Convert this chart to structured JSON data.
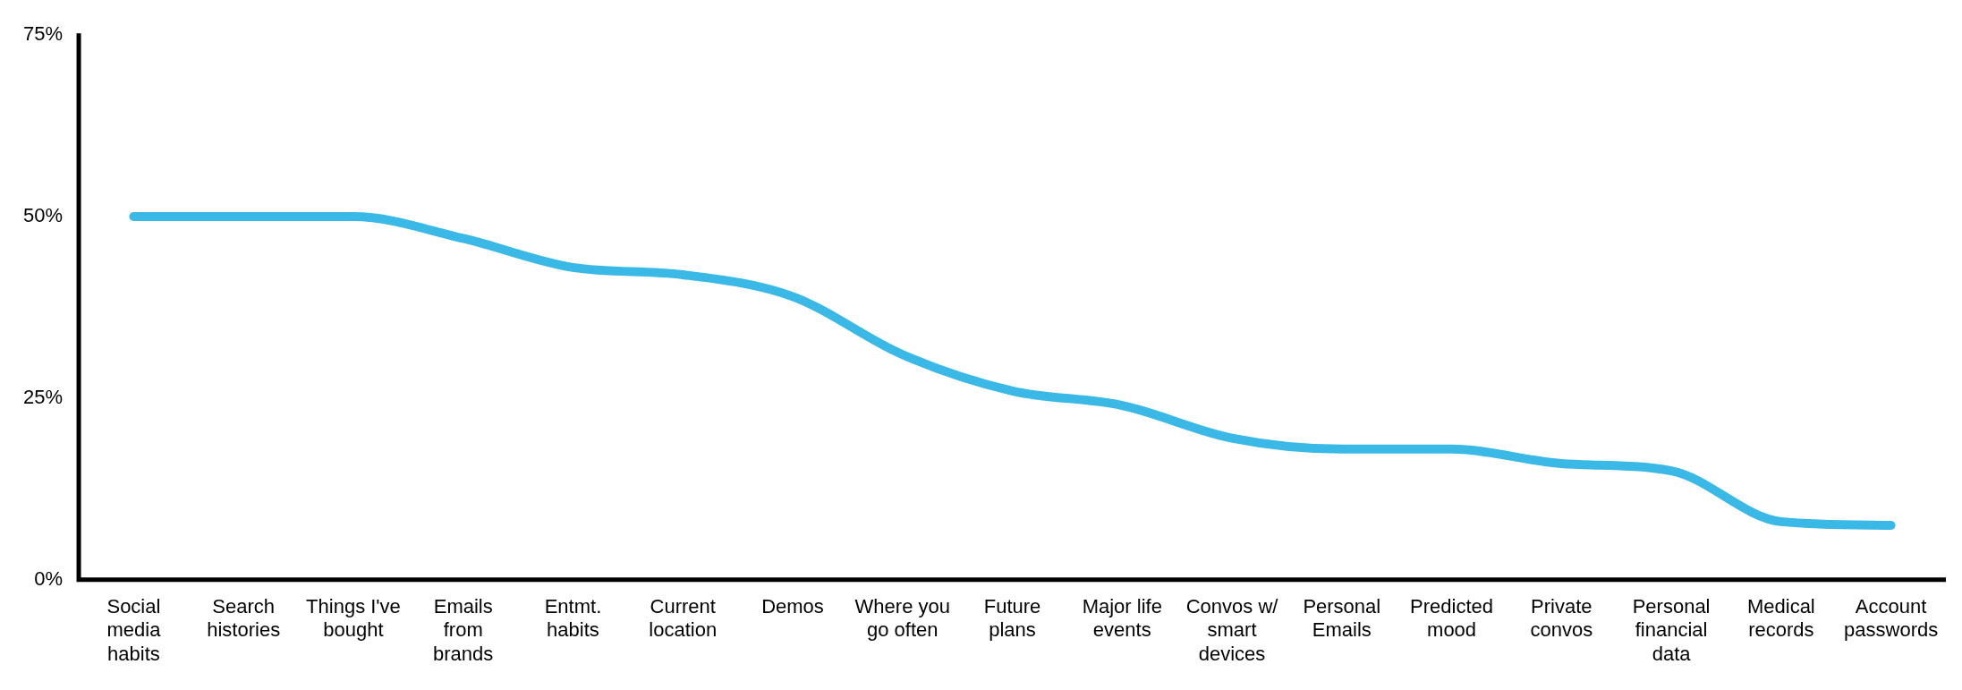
{
  "chart_data": {
    "type": "line",
    "categories": [
      "Social media habits",
      "Search histories",
      "Things I've bought",
      "Emails from brands",
      "Entmt. habits",
      "Current location",
      "Demos",
      "Where you go often",
      "Future plans",
      "Major life events",
      "Convos w/ smart devices",
      "Personal Emails",
      "Predicted mood",
      "Private convos",
      "Personal financial data",
      "Medical records",
      "Account passwords"
    ],
    "series": [
      {
        "color": "#3ab8e6",
        "values": [
          50,
          50,
          50,
          47,
          43,
          42,
          39,
          31,
          26,
          24,
          19.5,
          18,
          18,
          16,
          15,
          8,
          7.5
        ]
      }
    ],
    "ylim": [
      0,
      75
    ],
    "yticks": [
      {
        "value": 0,
        "label": "0%"
      },
      {
        "value": 25,
        "label": "25%"
      },
      {
        "value": 50,
        "label": "50%"
      },
      {
        "value": 75,
        "label": "75%"
      }
    ],
    "grid": false,
    "legend": false,
    "marker": "none",
    "line_style": "solid"
  }
}
